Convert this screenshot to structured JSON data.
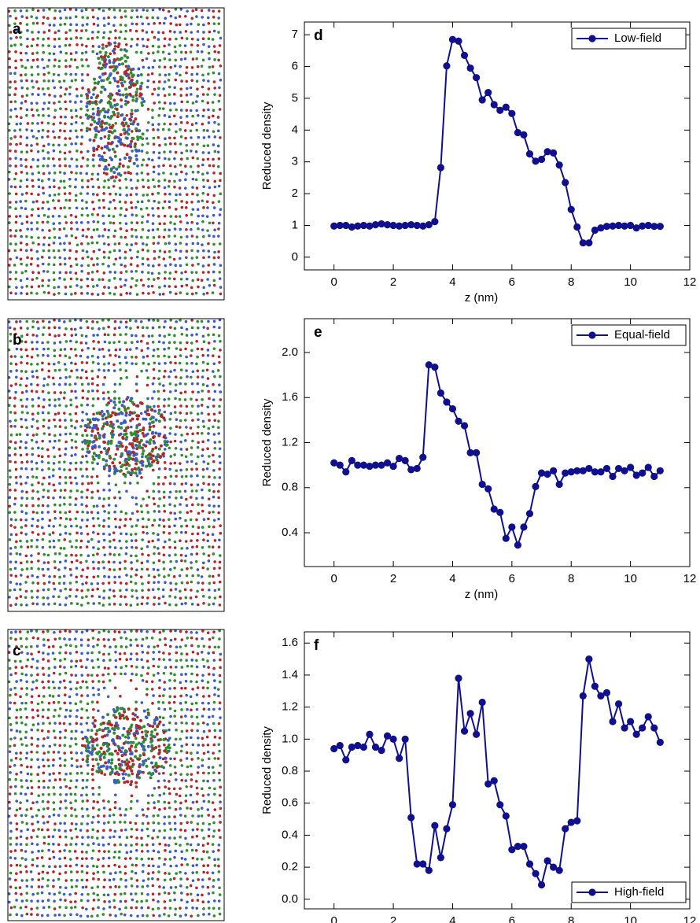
{
  "image_panels": [
    {
      "label": "a"
    },
    {
      "label": "b"
    },
    {
      "label": "c"
    }
  ],
  "chart_data": [
    {
      "type": "line",
      "panel_label": "d",
      "x_label": "z (nm)",
      "y_label": "Reduced density",
      "xlim": [
        -1,
        12
      ],
      "xticks": [
        0,
        2,
        4,
        6,
        8,
        10,
        12
      ],
      "ylim": [
        -0.4,
        7.4
      ],
      "yticks": [
        0,
        1,
        2,
        3,
        4,
        5,
        6,
        7
      ],
      "legend": "top-right",
      "x": [
        0,
        0.2,
        0.4,
        0.6,
        0.8,
        1,
        1.2,
        1.4,
        1.6,
        1.8,
        2,
        2.2,
        2.4,
        2.6,
        2.8,
        3,
        3.2,
        3.4,
        3.6,
        3.8,
        4,
        4.2,
        4.4,
        4.6,
        4.8,
        5,
        5.2,
        5.4,
        5.6,
        5.8,
        6,
        6.2,
        6.4,
        6.6,
        6.8,
        7,
        7.2,
        7.4,
        7.6,
        7.8,
        8,
        8.2,
        8.4,
        8.6,
        8.8,
        9,
        9.2,
        9.4,
        9.6,
        9.8,
        10,
        10.2,
        10.4,
        10.6,
        10.8,
        11
      ],
      "series": [
        {
          "name": "Low-field",
          "color": "#10108f",
          "values": [
            0.98,
            1.0,
            1.0,
            0.95,
            0.98,
            1.0,
            0.98,
            1.02,
            1.05,
            1.02,
            1.0,
            0.98,
            1.0,
            1.02,
            1.0,
            0.98,
            1.02,
            1.12,
            2.82,
            6.02,
            6.85,
            6.8,
            6.35,
            5.95,
            5.65,
            4.95,
            5.18,
            4.8,
            4.62,
            4.72,
            4.52,
            3.92,
            3.85,
            3.25,
            3.02,
            3.08,
            3.32,
            3.28,
            2.9,
            2.35,
            1.5,
            0.95,
            0.45,
            0.45,
            0.85,
            0.92,
            0.97,
            0.98,
            1.0,
            0.98,
            1.0,
            0.92,
            0.98,
            1.0,
            0.97,
            0.97
          ]
        }
      ]
    },
    {
      "type": "line",
      "panel_label": "e",
      "x_label": "z (nm)",
      "y_label": "Reduced density",
      "xlim": [
        -1,
        12
      ],
      "xticks": [
        0,
        2,
        4,
        6,
        8,
        10,
        12
      ],
      "ylim": [
        0.1,
        2.3
      ],
      "yticks": [
        0.4,
        0.8,
        1.2,
        1.6,
        {
          "value": 2,
          "label": "2.0"
        }
      ],
      "legend": "top-right",
      "x": [
        0,
        0.2,
        0.4,
        0.6,
        0.8,
        1,
        1.2,
        1.4,
        1.6,
        1.8,
        2,
        2.2,
        2.4,
        2.6,
        2.8,
        3,
        3.2,
        3.4,
        3.6,
        3.8,
        4,
        4.2,
        4.4,
        4.6,
        4.8,
        5,
        5.2,
        5.4,
        5.6,
        5.8,
        6,
        6.2,
        6.4,
        6.6,
        6.8,
        7,
        7.2,
        7.4,
        7.6,
        7.8,
        8,
        8.2,
        8.4,
        8.6,
        8.8,
        9,
        9.2,
        9.4,
        9.6,
        9.8,
        10,
        10.2,
        10.4,
        10.6,
        10.8,
        11
      ],
      "series": [
        {
          "name": "Equal-field",
          "color": "#10108f",
          "values": [
            1.02,
            1.0,
            0.94,
            1.04,
            1.0,
            1.0,
            0.99,
            1.0,
            1.0,
            1.02,
            0.99,
            1.06,
            1.04,
            0.96,
            0.97,
            1.07,
            1.89,
            1.87,
            1.64,
            1.56,
            1.5,
            1.39,
            1.35,
            1.11,
            1.11,
            0.83,
            0.79,
            0.61,
            0.58,
            0.35,
            0.45,
            0.29,
            0.45,
            0.57,
            0.81,
            0.93,
            0.92,
            0.95,
            0.83,
            0.93,
            0.94,
            0.95,
            0.95,
            0.97,
            0.94,
            0.94,
            0.97,
            0.9,
            0.97,
            0.95,
            0.98,
            0.91,
            0.93,
            0.98,
            0.9,
            0.95
          ]
        }
      ]
    },
    {
      "type": "line",
      "panel_label": "f",
      "x_label": "z (nm)",
      "y_label": "Reduced density",
      "xlim": [
        -1,
        12
      ],
      "xticks": [
        0,
        2,
        4,
        6,
        8,
        10,
        12
      ],
      "ylim": [
        -0.06,
        1.67
      ],
      "yticks": [
        {
          "value": 0,
          "label": "0.0"
        },
        0.2,
        0.4,
        0.6,
        0.8,
        {
          "value": 1,
          "label": "1.0"
        },
        1.2,
        1.4,
        1.6
      ],
      "legend": "bottom-right",
      "x": [
        0,
        0.2,
        0.4,
        0.6,
        0.8,
        1,
        1.2,
        1.4,
        1.6,
        1.8,
        2,
        2.2,
        2.4,
        2.6,
        2.8,
        3,
        3.2,
        3.4,
        3.6,
        3.8,
        4,
        4.2,
        4.4,
        4.6,
        4.8,
        5,
        5.2,
        5.4,
        5.6,
        5.8,
        6,
        6.2,
        6.4,
        6.6,
        6.8,
        7,
        7.2,
        7.4,
        7.6,
        7.8,
        8,
        8.2,
        8.4,
        8.6,
        8.8,
        9,
        9.2,
        9.4,
        9.6,
        9.8,
        10,
        10.2,
        10.4,
        10.6,
        10.8,
        11
      ],
      "series": [
        {
          "name": "High-field",
          "color": "#10108f",
          "values": [
            0.94,
            0.96,
            0.87,
            0.95,
            0.96,
            0.95,
            1.03,
            0.95,
            0.93,
            1.02,
            1.0,
            0.88,
            1.0,
            0.51,
            0.22,
            0.22,
            0.18,
            0.46,
            0.26,
            0.44,
            0.59,
            1.38,
            1.05,
            1.16,
            1.03,
            1.23,
            0.72,
            0.74,
            0.59,
            0.52,
            0.31,
            0.33,
            0.33,
            0.22,
            0.16,
            0.09,
            0.24,
            0.2,
            0.18,
            0.44,
            0.48,
            0.49,
            1.27,
            1.5,
            1.33,
            1.27,
            1.29,
            1.11,
            1.22,
            1.07,
            1.11,
            1.03,
            1.07,
            1.14,
            1.07,
            0.98
          ]
        }
      ]
    }
  ]
}
